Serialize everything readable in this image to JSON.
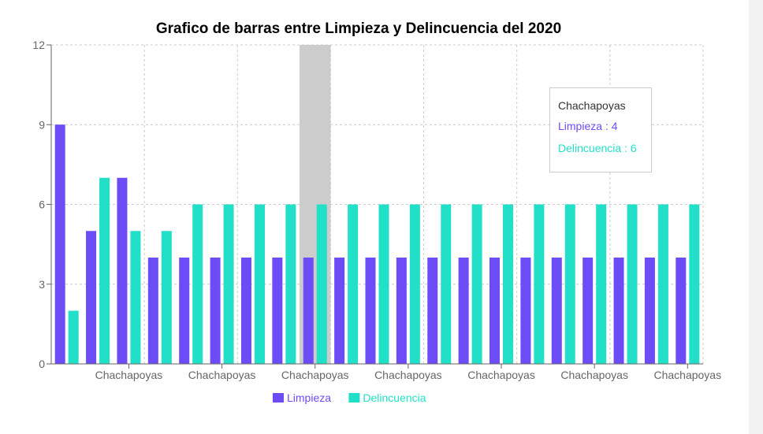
{
  "chart_data": {
    "type": "bar",
    "title": "Grafico de barras entre Limpieza y Delincuencia del 2020",
    "xlabel": "",
    "ylabel": "",
    "ylim": [
      0,
      12
    ],
    "yticks": [
      0,
      3,
      6,
      9,
      12
    ],
    "grid": true,
    "legend_position": "bottom-center",
    "categories": [
      "Chachapoyas",
      "Chachapoyas",
      "Chachapoyas",
      "Chachapoyas",
      "Chachapoyas",
      "Chachapoyas",
      "Chachapoyas",
      "Chachapoyas",
      "Chachapoyas",
      "Chachapoyas",
      "Chachapoyas",
      "Chachapoyas",
      "Chachapoyas",
      "Chachapoyas",
      "Chachapoyas",
      "Chachapoyas",
      "Chachapoyas",
      "Chachapoyas",
      "Chachapoyas",
      "Chachapoyas",
      "Chachapoyas"
    ],
    "x_tick_labels_shown": [
      "Chachapoyas",
      "Chachapoyas",
      "Chachapoyas",
      "Chachapoyas",
      "Chachapoyas",
      "Chachapoyas",
      "Chachapoyas"
    ],
    "series": [
      {
        "name": "Limpieza",
        "color": "#6b4cf6",
        "values": [
          9,
          5,
          7,
          4,
          4,
          4,
          4,
          4,
          4,
          4,
          4,
          4,
          4,
          4,
          4,
          4,
          4,
          4,
          4,
          4,
          4
        ]
      },
      {
        "name": "Delincuencia",
        "color": "#22e0c8",
        "values": [
          2,
          7,
          5,
          5,
          6,
          6,
          6,
          6,
          6,
          6,
          6,
          6,
          6,
          6,
          6,
          6,
          6,
          6,
          6,
          6,
          6
        ]
      }
    ],
    "highlighted_index": 8,
    "highlight_color": "#cccccc",
    "tooltip": {
      "label": "Chachapoyas",
      "rows": [
        {
          "text": "Limpieza : 4",
          "color": "#6b4cf6"
        },
        {
          "text": "Delincuencia : 6",
          "color": "#22e0c8"
        }
      ]
    }
  }
}
